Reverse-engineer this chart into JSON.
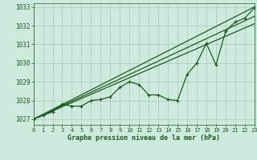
{
  "bg_color": "#ceeade",
  "grid_color": "#a8c8b8",
  "line_color": "#1a5c1a",
  "text_color": "#1a5c1a",
  "xlabel": "Graphe pression niveau de la mer (hPa)",
  "xlim": [
    0,
    23
  ],
  "ylim": [
    1026.7,
    1033.2
  ],
  "yticks": [
    1027,
    1028,
    1029,
    1030,
    1031,
    1032,
    1033
  ],
  "xticks": [
    0,
    1,
    2,
    3,
    4,
    5,
    6,
    7,
    8,
    9,
    10,
    11,
    12,
    13,
    14,
    15,
    16,
    17,
    18,
    19,
    20,
    21,
    22,
    23
  ],
  "straight_lines": [
    {
      "x": [
        0,
        23
      ],
      "y": [
        1027.0,
        1033.0
      ]
    },
    {
      "x": [
        0,
        23
      ],
      "y": [
        1027.0,
        1032.5
      ]
    },
    {
      "x": [
        0,
        23
      ],
      "y": [
        1027.0,
        1032.1
      ]
    }
  ],
  "jagged_x": [
    0,
    1,
    2,
    3,
    4,
    5,
    6,
    7,
    8,
    9,
    10,
    11,
    12,
    13,
    14,
    15,
    16,
    17,
    18,
    19,
    20,
    21,
    22,
    23
  ],
  "jagged_y": [
    1027.0,
    1027.2,
    1027.4,
    1027.8,
    1027.7,
    1027.7,
    1028.0,
    1028.05,
    1028.2,
    1028.7,
    1029.0,
    1028.85,
    1028.3,
    1028.3,
    1028.05,
    1028.0,
    1029.4,
    1030.0,
    1031.05,
    1029.9,
    1031.7,
    1032.2,
    1032.4,
    1032.95
  ]
}
